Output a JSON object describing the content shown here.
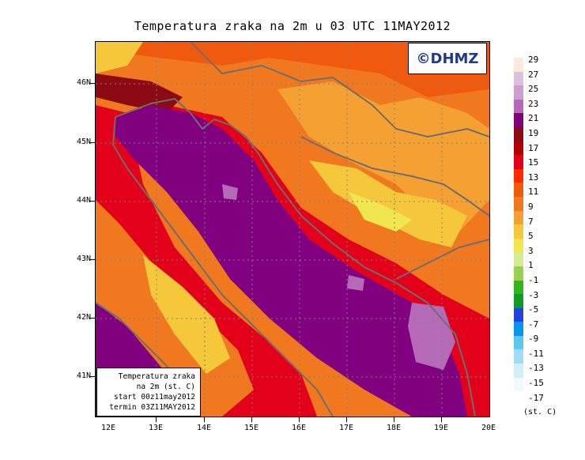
{
  "title": "Temperatura zraka na 2m u 03 UTC 11MAY2012",
  "brand": "©DHMZ",
  "info": {
    "line1": "Temperatura zraka",
    "line2": "na 2m (st. C)",
    "line3": "start 00z11may2012",
    "line4": "termin 03Z11MAY2012"
  },
  "lat_labels": [
    "46N",
    "45N",
    "44N",
    "43N",
    "42N",
    "41N"
  ],
  "lon_labels": [
    "12E",
    "13E",
    "14E",
    "15E",
    "16E",
    "17E",
    "18E",
    "19E",
    "20E"
  ],
  "legend": {
    "labels": [
      "29",
      "27",
      "25",
      "23",
      "21",
      "19",
      "17",
      "15",
      "13",
      "11",
      "9",
      "7",
      "5",
      "3",
      "1",
      "-1",
      "-3",
      "-5",
      "-7",
      "-9",
      "-11",
      "-13",
      "-15",
      "-17"
    ],
    "colors": [
      "#fde9d9",
      "#dcc1dc",
      "#c9a0cf",
      "#b56ab8",
      "#800080",
      "#8b0a14",
      "#b30000",
      "#e3001b",
      "#ff2a00",
      "#f05a0f",
      "#f0781e",
      "#f5a032",
      "#f5c83c",
      "#f0e650",
      "#d2eb96",
      "#96d250",
      "#32b41e",
      "#109b28",
      "#1e46dc",
      "#0a96e6",
      "#5ac8f0",
      "#a0dcf5",
      "#d2f0fa",
      "#eefafd"
    ],
    "units": "(st. C)"
  }
}
